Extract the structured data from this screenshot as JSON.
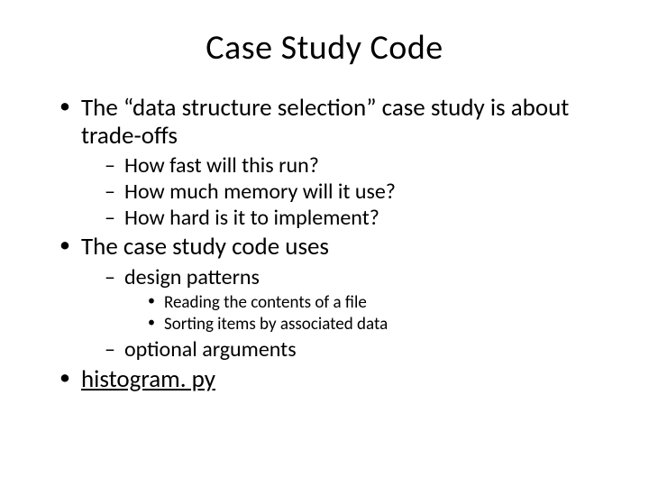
{
  "title": "Case Study Code",
  "bullets": {
    "b1": "The “data structure selection” case study is about trade-offs",
    "b1_sub": {
      "s1": "How fast will this run?",
      "s2": "How much memory will it use?",
      "s3": "How hard is it to implement?"
    },
    "b2": "The case study code uses",
    "b2_sub": {
      "s1": "design patterns",
      "s1_sub": {
        "t1": "Reading the contents of a file",
        "t2": "Sorting items by associated data"
      },
      "s2": "optional arguments"
    },
    "b3": "histogram. py"
  }
}
